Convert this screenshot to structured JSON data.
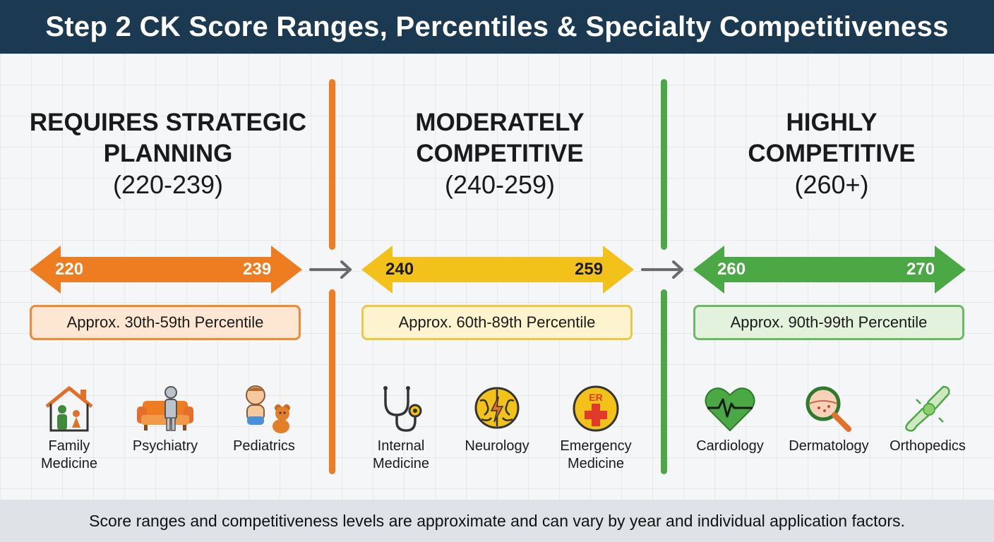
{
  "title": "Step 2 CK Score Ranges, Percentiles & Specialty Competitiveness",
  "footer_note": "Score ranges and competitiveness levels are approximate and can vary by year and individual application factors.",
  "colors": {
    "header_bg": "#1b3a52",
    "tier1": "#ee7d22",
    "tier2": "#f2c21a",
    "tier3": "#4aa845"
  },
  "tiers": [
    {
      "title_line1": "REQUIRES STRATEGIC",
      "title_line2": "PLANNING",
      "range": "(220-239)",
      "low": "220",
      "high": "239",
      "percentile": "Approx. 30th-59th Percentile",
      "specialties": [
        {
          "icon": "house-family-icon",
          "line1": "Family",
          "line2": "Medicine"
        },
        {
          "icon": "couch-person-icon",
          "line1": "Psychiatry",
          "line2": ""
        },
        {
          "icon": "baby-teddy-bear-icon",
          "line1": "Pediatrics",
          "line2": ""
        }
      ]
    },
    {
      "title_line1": "MODERATELY",
      "title_line2": "COMPETITIVE",
      "range": "(240-259)",
      "low": "240",
      "high": "259",
      "percentile": "Approx. 60th-89th Percentile",
      "specialties": [
        {
          "icon": "stethoscope-icon",
          "line1": "Internal",
          "line2": "Medicine"
        },
        {
          "icon": "brain-icon",
          "line1": "Neurology",
          "line2": ""
        },
        {
          "icon": "er-cross-icon",
          "line1": "Emergency",
          "line2": "Medicine"
        }
      ]
    },
    {
      "title_line1": "HIGHLY",
      "title_line2": "COMPETITIVE",
      "range": "(260+)",
      "low": "260",
      "high": "270",
      "percentile": "Approx. 90th-99th Percentile",
      "specialties": [
        {
          "icon": "heart-ecg-icon",
          "line1": "Cardiology",
          "line2": ""
        },
        {
          "icon": "magnifier-skin-icon",
          "line1": "Dermatology",
          "line2": ""
        },
        {
          "icon": "bone-joint-icon",
          "line1": "Orthopedics",
          "line2": ""
        }
      ]
    }
  ],
  "er_text": "ER"
}
